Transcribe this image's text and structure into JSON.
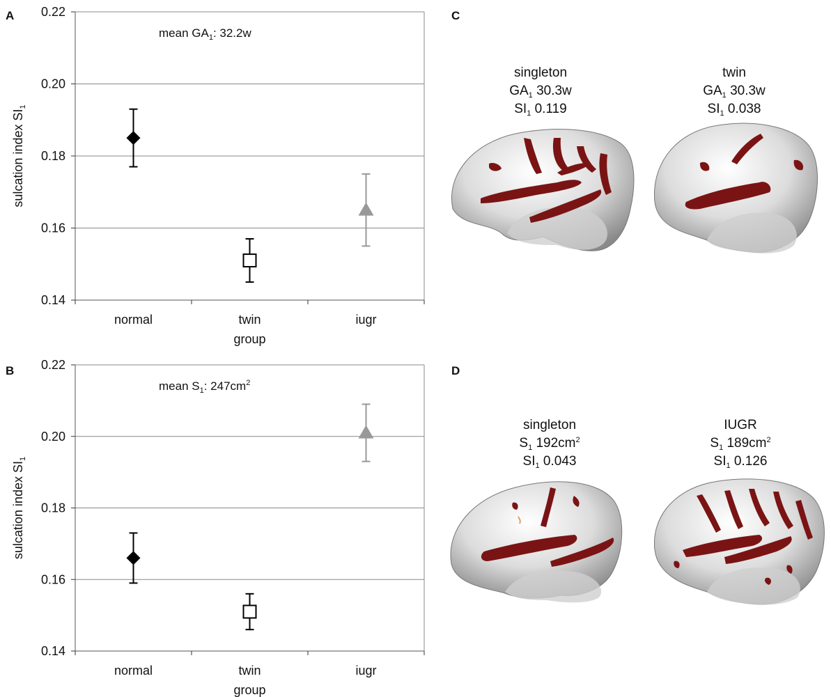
{
  "panels": {
    "A": "A",
    "B": "B",
    "C": "C",
    "D": "D"
  },
  "colors": {
    "normal": "#000000",
    "twin": "#000000",
    "iugr": "#999999",
    "grid": "#888888",
    "sulcus": "#7a1414",
    "cortex": "#d9d9d9"
  },
  "chart_data": [
    {
      "type": "scatter",
      "panel": "A",
      "categories": [
        "normal",
        "twin",
        "iugr"
      ],
      "series": [
        {
          "category": "normal",
          "value": 0.185,
          "err_low": 0.177,
          "err_high": 0.193,
          "marker": "diamond-filled"
        },
        {
          "category": "twin",
          "value": 0.151,
          "err_low": 0.145,
          "err_high": 0.157,
          "marker": "square-open"
        },
        {
          "category": "iugr",
          "value": 0.165,
          "err_low": 0.155,
          "err_high": 0.175,
          "marker": "triangle-gray"
        }
      ],
      "yticks": [
        "0.14",
        "0.16",
        "0.18",
        "0.20",
        "0.22"
      ],
      "ylim": [
        0.14,
        0.22
      ],
      "ylabel": {
        "main": "sulcation index SI",
        "sub": "1"
      },
      "xlabel": "group",
      "annotation": {
        "pre": "mean GA",
        "sub": "1",
        "post": ": 32.2w"
      },
      "grid": true
    },
    {
      "type": "scatter",
      "panel": "B",
      "categories": [
        "normal",
        "twin",
        "iugr"
      ],
      "series": [
        {
          "category": "normal",
          "value": 0.166,
          "err_low": 0.159,
          "err_high": 0.173,
          "marker": "diamond-filled"
        },
        {
          "category": "twin",
          "value": 0.151,
          "err_low": 0.146,
          "err_high": 0.156,
          "marker": "square-open"
        },
        {
          "category": "iugr",
          "value": 0.201,
          "err_low": 0.193,
          "err_high": 0.209,
          "marker": "triangle-gray"
        }
      ],
      "yticks": [
        "0.14",
        "0.16",
        "0.18",
        "0.20",
        "0.22"
      ],
      "ylim": [
        0.14,
        0.22
      ],
      "ylabel": {
        "main": "sulcation index SI",
        "sub": "1"
      },
      "xlabel": "group",
      "annotation": {
        "pre": "mean S",
        "sub": "1",
        "post": ": 247cm",
        "sup": "2"
      },
      "grid": true
    }
  ],
  "brains": {
    "C": [
      {
        "line1": "singleton",
        "l2pre": "GA",
        "l2sub": "1",
        "l2post": " 30.3w",
        "l3pre": "SI",
        "l3sub": "1",
        "l3post": " 0.119"
      },
      {
        "line1": "twin",
        "l2pre": "GA",
        "l2sub": "1",
        "l2post": " 30.3w",
        "l3pre": "SI",
        "l3sub": "1",
        "l3post": " 0.038"
      }
    ],
    "D": [
      {
        "line1": "singleton",
        "l2pre": "S",
        "l2sub": "1",
        "l2post": " 192cm",
        "l2sup": "2",
        "l3pre": "SI",
        "l3sub": "1",
        "l3post": " 0.043"
      },
      {
        "line1": "IUGR",
        "l2pre": "S",
        "l2sub": "1",
        "l2post": " 189cm",
        "l2sup": "2",
        "l3pre": "SI",
        "l3sub": "1",
        "l3post": " 0.126"
      }
    ]
  }
}
